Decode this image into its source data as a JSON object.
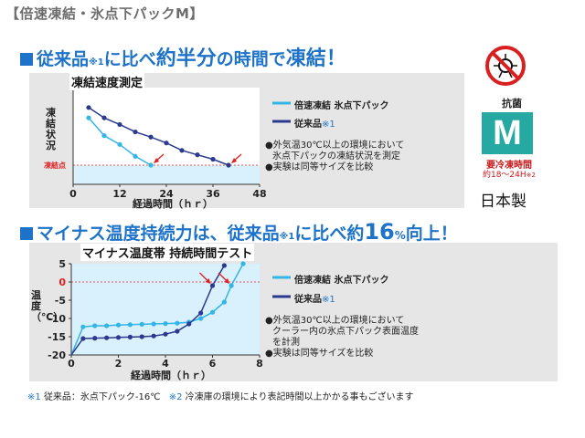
{
  "page_title": "【倍速凍結・氷点下パックM】",
  "section1": {
    "headline": [
      "従来品",
      "※1",
      "に比べ",
      "約半分",
      "の時間で",
      "凍結！"
    ],
    "chart_title": "凍結速度測定",
    "notes": [
      "●外気温30℃以上の環境において",
      "氷点下パックの凍結状況を測定",
      "●実験は同等サイズを比較"
    ]
  },
  "section2": {
    "headline": [
      "マイナス温度持続力は、従来品",
      "※1",
      "に比べ",
      "約",
      "16",
      "%",
      "向上！"
    ],
    "chart_title": "マイナス温度帯 持続時間テスト",
    "notes": [
      "●外気温30℃以上の環境において",
      "クーラー内の氷点下パック表面温度",
      "を計測",
      "●実験は同等サイズを比較"
    ]
  },
  "badges": {
    "antibacterial": "抗菌",
    "size": "M",
    "freeze_time_label": "要冷凍時間",
    "freeze_time_value": "約18〜24H",
    "freeze_time_mark": "※2",
    "origin": "日本製"
  },
  "footnote": {
    "mark1": "※1",
    "text1": "従来品：氷点下パック-16℃",
    "mark2": "※2",
    "text2": "冷凍庫の環境により表記時間以上かかる事もございます"
  },
  "colors": {
    "accent": "#1e73c8",
    "series_new": "#33b5e6",
    "series_old": "#2b3a8f",
    "arrow": "#e02020",
    "plot_bg": "#d9f1fc",
    "m_badge": "#25a9a2"
  },
  "chart_data": [
    {
      "type": "line",
      "title": "凍結速度測定",
      "xlabel": "経過時間（ｈｒ）",
      "ylabel": "凍結状況",
      "xlim": [
        0,
        48
      ],
      "xticks": [
        "0",
        "12",
        "24",
        "36",
        "48"
      ],
      "ytick_labels": [
        "凍結点"
      ],
      "grid": false,
      "legend_position": "right",
      "series": [
        {
          "name": "倍速凍結 氷点下パック",
          "color": "#33b5e6",
          "x": [
            4,
            8,
            12,
            16,
            20
          ],
          "y": [
            0.64,
            0.4,
            0.28,
            0.12,
            0.0
          ]
        },
        {
          "name": "従来品",
          "mark": "※1",
          "color": "#2b3a8f",
          "x": [
            4,
            8,
            12,
            16,
            20,
            24,
            28,
            32,
            36,
            40
          ],
          "y": [
            0.78,
            0.64,
            0.55,
            0.45,
            0.38,
            0.3,
            0.2,
            0.14,
            0.08,
            0.0
          ]
        }
      ]
    },
    {
      "type": "line",
      "title": "マイナス温度帯 持続時間テスト",
      "xlabel": "経過時間（ｈｒ）",
      "ylabel": "温度（℃）",
      "xlim": [
        0,
        8
      ],
      "ylim": [
        -20,
        5
      ],
      "xticks": [
        "0",
        "2",
        "4",
        "6",
        "8"
      ],
      "yticks": [
        "5",
        "0",
        "-5",
        "-10",
        "-15",
        "-20"
      ],
      "grid": false,
      "legend_position": "right",
      "series": [
        {
          "name": "倍速凍結 氷点下パック",
          "color": "#33b5e6",
          "x": [
            0.0,
            0.5,
            1.0,
            1.5,
            2.0,
            2.5,
            3.0,
            3.5,
            4.0,
            4.5,
            5.0,
            5.5,
            6.0,
            6.5,
            6.8,
            7.3
          ],
          "y": [
            -20.0,
            -12.3,
            -12.0,
            -12.0,
            -11.8,
            -11.7,
            -11.6,
            -11.5,
            -11.4,
            -11.3,
            -11.0,
            -10.0,
            -8.3,
            -5.5,
            -1.0,
            5.0
          ]
        },
        {
          "name": "従来品",
          "mark": "※1",
          "color": "#2b3a8f",
          "x": [
            0.0,
            0.5,
            1.0,
            1.5,
            2.0,
            2.5,
            3.0,
            3.5,
            4.0,
            4.5,
            5.0,
            5.5,
            6.0,
            6.5
          ],
          "y": [
            -20.0,
            -15.5,
            -15.4,
            -15.3,
            -15.2,
            -15.1,
            -15.0,
            -14.8,
            -14.3,
            -13.5,
            -11.5,
            -8.5,
            -1.0,
            4.5
          ]
        }
      ]
    }
  ]
}
